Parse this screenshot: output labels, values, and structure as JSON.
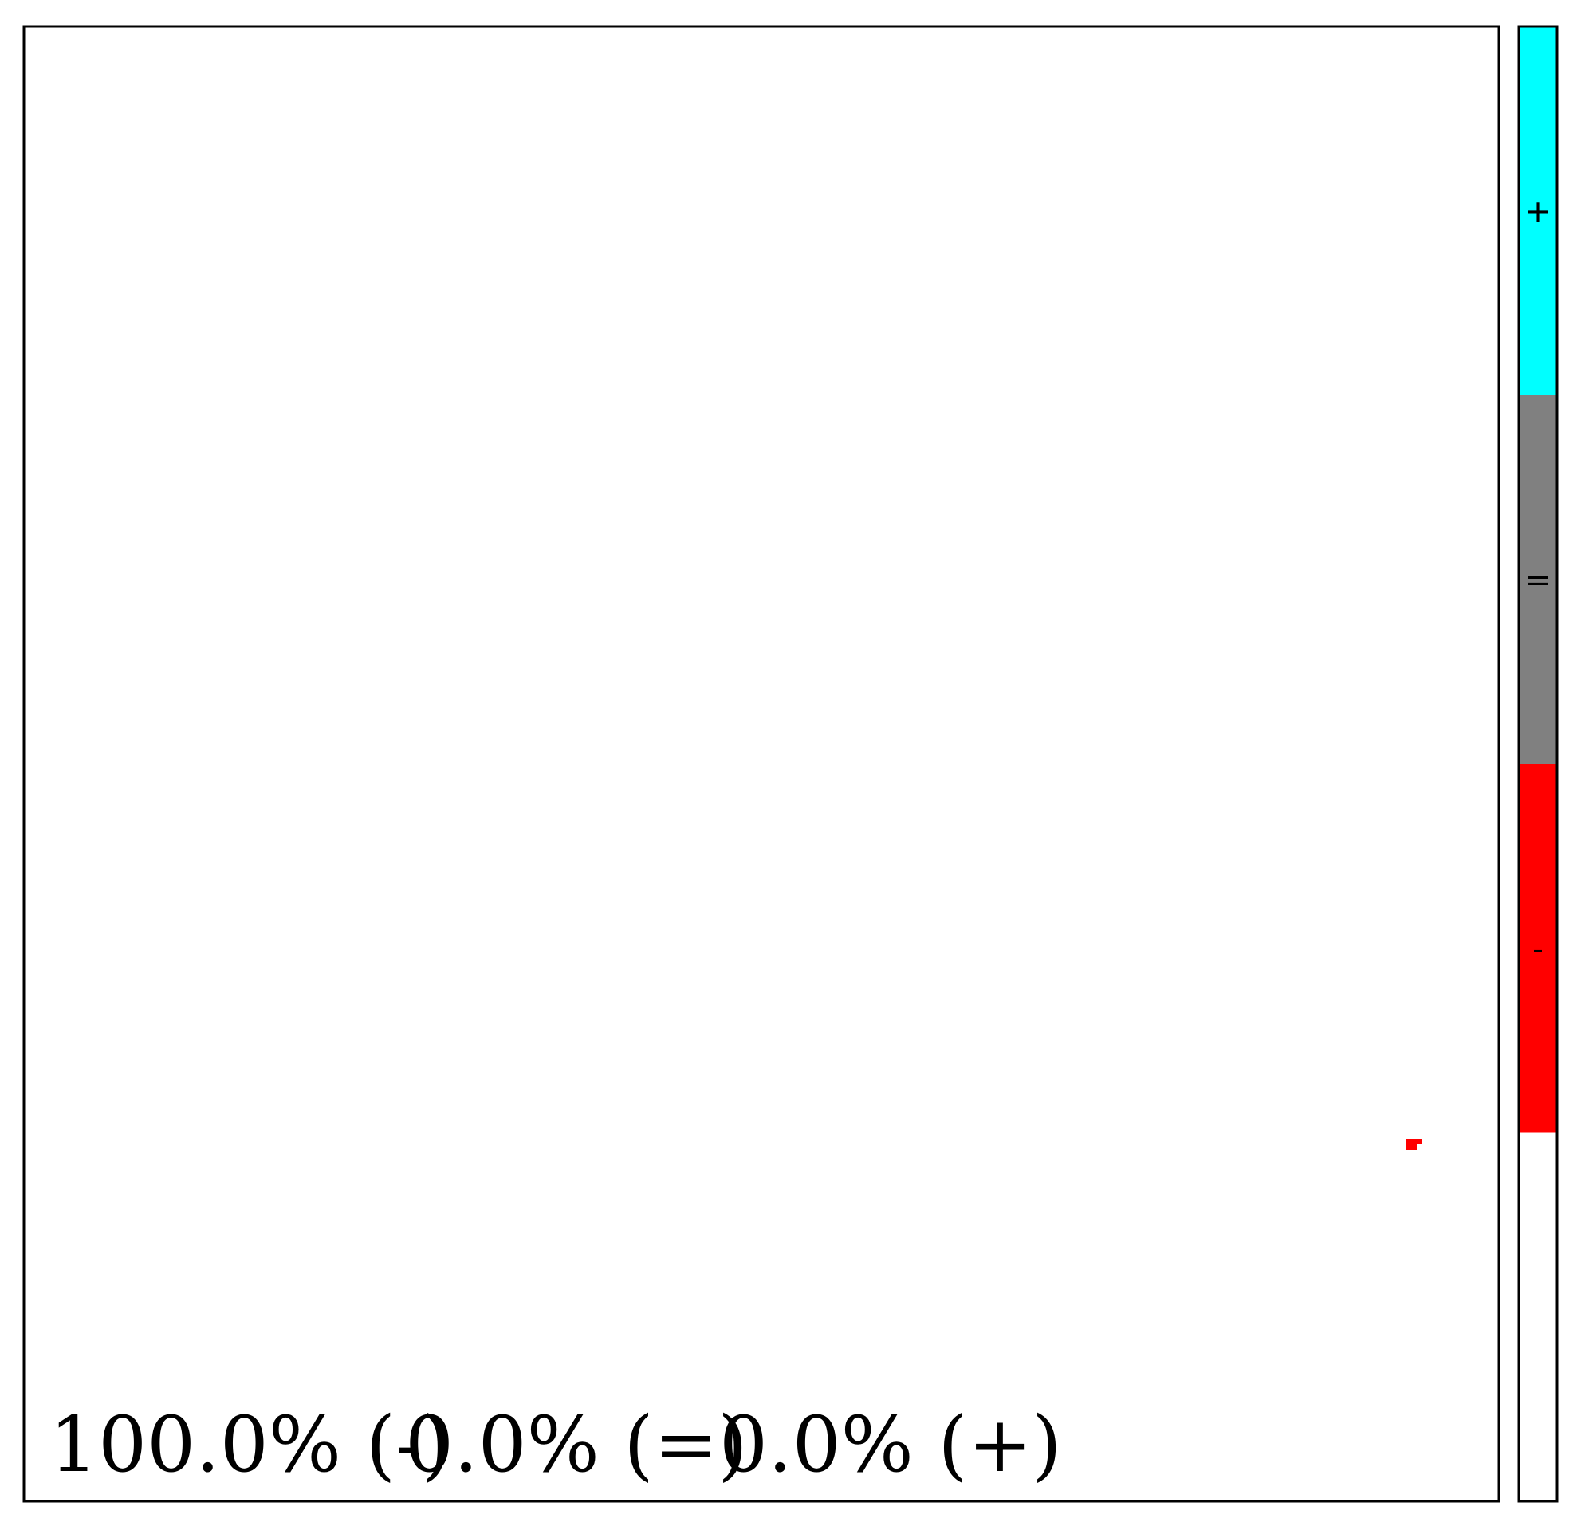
{
  "chart_data": {
    "type": "heatmap",
    "summary": {
      "neg_label": "100.0% (-)",
      "eq_label": "0.0% (=)",
      "pos_label": "0.0% (+)"
    },
    "category_colors": {
      "+": "#00ffff",
      "=": "#808080",
      "-": "#ff0000"
    },
    "legend": [
      {
        "symbol": "+",
        "color": "#00ffff"
      },
      {
        "symbol": "=",
        "color": "#808080"
      },
      {
        "symbol": "-",
        "color": "#ff0000"
      },
      {
        "symbol": "",
        "color": "#ffffff"
      }
    ],
    "cells": [
      {
        "cell": 0,
        "category": "-"
      },
      {
        "cell": 1,
        "category": "-"
      },
      {
        "cell": 2,
        "category": "-"
      },
      {
        "cell": 3,
        "category": "-"
      },
      {
        "cell": 4,
        "category": "-"
      }
    ],
    "grid": false
  }
}
